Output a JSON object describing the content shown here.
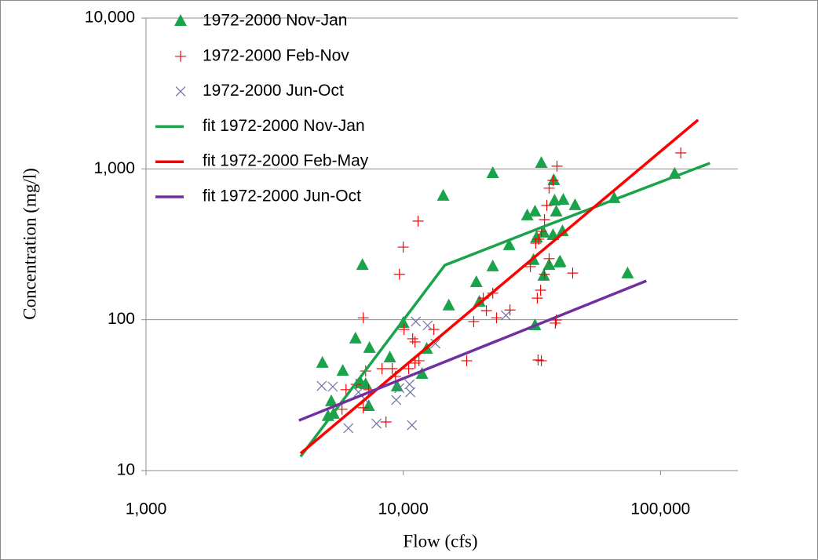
{
  "chart_data": {
    "type": "scatter",
    "xlabel": "Flow (cfs)",
    "ylabel": "Concentration (mg/l)",
    "xscale": "log",
    "yscale": "log",
    "xlim": [
      1000,
      200000
    ],
    "ylim": [
      10,
      10000
    ],
    "xticks": [
      {
        "value": 1000,
        "label": "1,000"
      },
      {
        "value": 10000,
        "label": "10,000"
      },
      {
        "value": 100000,
        "label": "100,000"
      }
    ],
    "yticks": [
      10,
      100,
      {
        "value": 1000,
        "label": "1,000"
      },
      {
        "value": 10000,
        "label": "10,000"
      }
    ],
    "grid": true,
    "legend": "upper-left",
    "series": [
      {
        "name": "1972-2000 Nov-Jan",
        "color": "#1aa34a",
        "mode": "triangle",
        "x": [
          4850,
          5820,
          6520,
          6940,
          7390,
          7140,
          6840,
          7340,
          5250,
          5360,
          5100,
          8870,
          10000,
          9460,
          12340,
          11830,
          14300,
          15030,
          19230,
          19770,
          22280,
          22280,
          25820,
          30340,
          32520,
          32970,
          32070,
          32520,
          34420,
          35150,
          35150,
          36900,
          38210,
          38480,
          38740,
          39330,
          40440,
          41580,
          41880,
          40710,
          46540,
          66070,
          74470,
          113500
        ],
        "values": [
          51.6,
          45.7,
          74.8,
          230,
          64.8,
          37.3,
          37.8,
          26.7,
          28.7,
          23.7,
          22.9,
          56.1,
          95,
          36,
          64,
          43.6,
          661,
          124,
          177,
          131,
          225,
          935,
          311,
          490,
          520,
          350,
          248,
          91.6,
          1092,
          377,
          195,
          230,
          363,
          839,
          615,
          520,
          239,
          385,
          622,
          242,
          573,
          638,
          202,
          925
        ]
      },
      {
        "name": "1972-2000 Feb-Nov",
        "color": "#ff0000",
        "mode": "plus",
        "x": [
          6990,
          7140,
          5780,
          5990,
          6560,
          6990,
          7340,
          8270,
          8570,
          9060,
          9660,
          10000,
          9330,
          10070,
          10500,
          10880,
          11110,
          11420,
          11110,
          11510,
          13150,
          17650,
          18790,
          20460,
          21040,
          22280,
          23050,
          26000,
          31190,
          32750,
          33650,
          34420,
          35400,
          36150,
          36900,
          38210,
          39600,
          36900,
          35400,
          34190,
          33200,
          34420,
          33430,
          39010,
          39330,
          45570,
          119950
        ],
        "values": [
          103,
          45.7,
          25.5,
          34.4,
          37.3,
          26.1,
          34.4,
          47.4,
          21,
          47.4,
          200,
          303,
          42.1,
          86.3,
          47.4,
          74.8,
          71.3,
          451,
          51.6,
          53.5,
          86.3,
          53.5,
          97.3,
          139,
          115,
          150,
          103,
          116,
          225,
          322,
          342,
          385,
          461,
          573,
          745,
          839,
          1042,
          254,
          200,
          157,
          139,
          53.5,
          54.1,
          95,
          99.6,
          204,
          1276
        ]
      },
      {
        "name": "1972-2000 Jun-Oct",
        "color": "#7070a8",
        "mode": "cross",
        "x": [
          5320,
          4820,
          6120,
          6700,
          7140,
          7870,
          9390,
          9660,
          10580,
          10810,
          10650,
          11190,
          12440,
          13330,
          25060
        ],
        "values": [
          36,
          36.4,
          19.1,
          33.1,
          29.4,
          20.5,
          29.4,
          35.2,
          37.3,
          20,
          33.1,
          97.3,
          91.6,
          69.6,
          107
        ]
      },
      {
        "name": "fit 1972-2000 Nov-Jan",
        "color": "#1aa34a",
        "mode": "line",
        "x": [
          3990,
          14510,
          34420,
          155600
        ],
        "values": [
          12.4,
          230,
          409,
          1092
        ]
      },
      {
        "name": "fit 1972-2000 Feb-May",
        "color": "#ff0000",
        "mode": "line",
        "x": [
          3990,
          140000
        ],
        "values": [
          13,
          2113
        ]
      },
      {
        "name": "fit 1972-2000 Jun-Oct",
        "color": "#7030a0",
        "mode": "line",
        "x": [
          3930,
          88100
        ],
        "values": [
          21.5,
          181
        ]
      }
    ]
  }
}
